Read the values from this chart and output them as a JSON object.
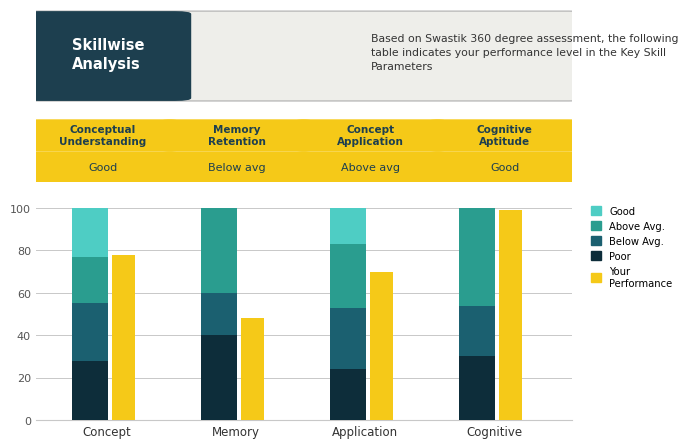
{
  "title_box_text": "Skillwise\nAnalysis",
  "description_text": "Based on Swastik 360 degree assessment, the following\ntable indicates your performance level in the Key Skill\nParameters",
  "header_color": "#1d3f4f",
  "yellow_color": "#f5c918",
  "yellow_dark": "#e8b800",
  "bg_box_color": "#eeeeea",
  "categories": [
    "Concept",
    "Memory",
    "Application",
    "Cognitive"
  ],
  "skill_headers": [
    "Conceptual\nUnderstanding",
    "Memory\nRetention",
    "Concept\nApplication",
    "Cognitive\nAptitude"
  ],
  "skill_values": [
    "Good",
    "Below avg",
    "Above avg",
    "Good"
  ],
  "stacked_data": {
    "Poor": [
      28,
      40,
      24,
      30
    ],
    "Below Avg.": [
      27,
      20,
      29,
      24
    ],
    "Above Avg.": [
      22,
      40,
      30,
      46
    ],
    "Good": [
      23,
      0,
      17,
      0
    ]
  },
  "performance": [
    78,
    48,
    70,
    99
  ],
  "colors": {
    "Good": "#4ecdc4",
    "Above Avg.": "#2a9d8f",
    "Below Avg.": "#1b6070",
    "Poor": "#0d2d3a",
    "Your Performance": "#f5c918"
  },
  "bar_width": 0.28,
  "perf_bar_width": 0.18,
  "ylim": [
    0,
    105
  ],
  "yticks": [
    0,
    20,
    40,
    60,
    80,
    100
  ],
  "background_color": "#ffffff",
  "grid_color": "#c8c8c8"
}
